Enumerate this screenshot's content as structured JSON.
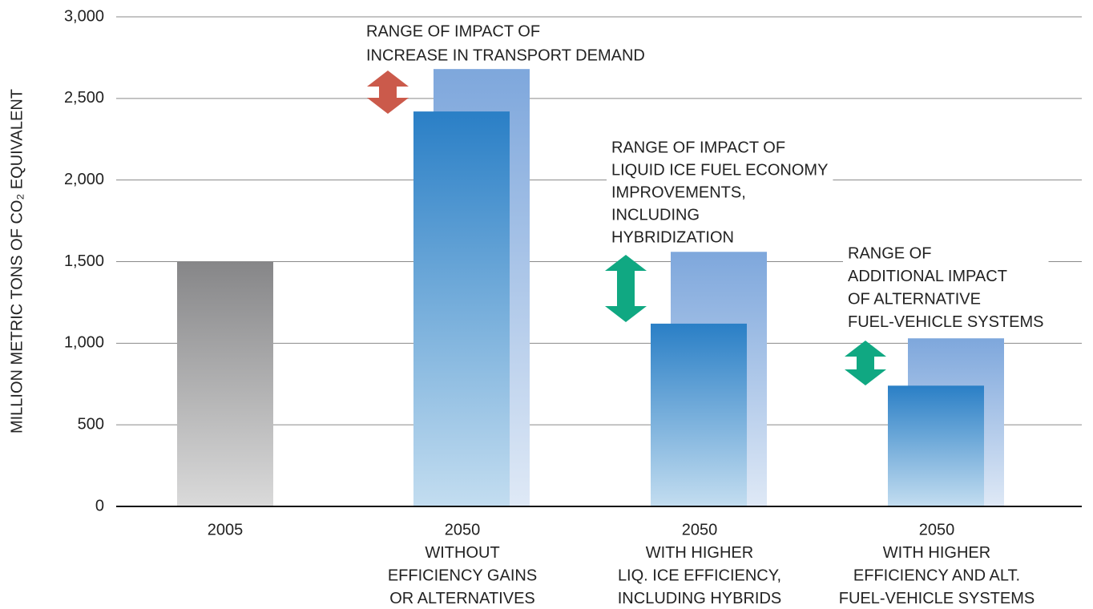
{
  "chart_data": {
    "type": "bar",
    "y_axis_label": "MILLION METRIC TONS OF CO₂ EQUIVALENT",
    "categories": [
      [
        "2005"
      ],
      [
        "2050",
        "WITHOUT",
        "EFFICIENCY GAINS",
        "OR ALTERNATIVES"
      ],
      [
        "2050",
        "WITH HIGHER",
        "LIQ. ICE EFFICIENCY,",
        "INCLUDING HYBRIDS"
      ],
      [
        "2050",
        "WITH HIGHER",
        "EFFICIENCY AND ALT.",
        "FUEL-VEHICLE SYSTEMS"
      ]
    ],
    "series": [
      {
        "colors": [
          "#868688",
          "#2a7fc6",
          "#2a7fc6",
          "#2a7fc6"
        ],
        "values": [
          1500,
          2420,
          1120,
          740
        ]
      },
      {
        "color": "#7ea7dc",
        "values": [
          null,
          2680,
          1560,
          1030
        ]
      }
    ],
    "ylim": [
      0,
      3000
    ],
    "yticks": [
      0,
      500,
      {
        "value": 1000,
        "label": "1,000"
      },
      {
        "value": 1500,
        "label": "1,500"
      },
      {
        "value": 2000,
        "label": "2,000"
      },
      {
        "value": 2500,
        "label": "2,500"
      },
      {
        "value": 3000,
        "label": "3,000"
      }
    ],
    "grid": true,
    "annotations": [
      {
        "lines": [
          "RANGE OF IMPACT OF",
          "INCREASE IN TRANSPORT DEMAND"
        ],
        "arrow_color": "#cb5a4b"
      },
      {
        "lines": [
          "RANGE OF IMPACT OF",
          "LIQUID ICE FUEL ECONOMY",
          "IMPROVEMENTS,",
          "INCLUDING",
          "HYBRIDIZATION"
        ],
        "arrow_color": "#10a882"
      },
      {
        "lines": [
          "RANGE OF",
          "ADDITIONAL IMPACT",
          "OF ALTERNATIVE",
          "FUEL-VEHICLE SYSTEMS"
        ],
        "arrow_color": "#10a882"
      }
    ]
  }
}
